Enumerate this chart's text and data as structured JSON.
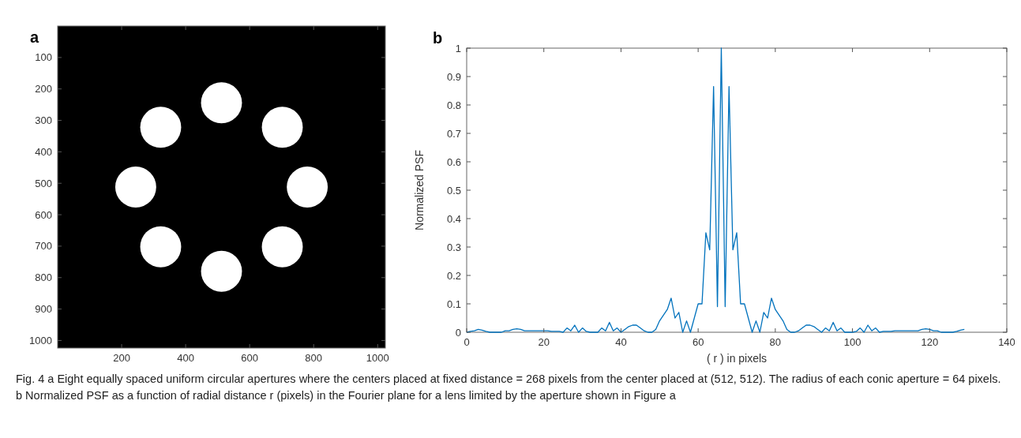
{
  "chart_data": [
    {
      "type": "bubble",
      "title": "a",
      "xlim": [
        0,
        1024
      ],
      "ylim": [
        1024,
        0
      ],
      "xticks": [
        200,
        400,
        600,
        800,
        1000
      ],
      "yticks": [
        100,
        200,
        300,
        400,
        500,
        600,
        700,
        800,
        900,
        1000
      ],
      "grid": false,
      "series": [
        {
          "color": "#ffffff",
          "x": [
            512,
            702,
            780,
            702,
            512,
            322,
            244,
            322
          ],
          "values": [
            244,
            322,
            512,
            702,
            780,
            702,
            512,
            322
          ],
          "sizes": [
            1,
            1,
            1,
            1,
            1,
            1,
            1,
            1
          ]
        }
      ]
    },
    {
      "type": "line",
      "title": "b",
      "xlabel": "( r ) in pixels",
      "ylabel": "Normalized PSF",
      "xlim": [
        0,
        140
      ],
      "ylim": [
        0,
        1
      ],
      "xticks": [
        0,
        20,
        40,
        60,
        80,
        100,
        120,
        140
      ],
      "yticks": [
        0,
        0.1,
        0.2,
        0.3,
        0.4,
        0.5,
        0.6,
        0.7,
        0.8,
        0.9,
        1
      ],
      "grid": false,
      "annotations": [
        "Fig. 4 a Eight equally spaced uniform circular apertures where the centers placed at fixed distance = 268 pixels from the center placed at (512, 512). The radius of each conic aperture = 64 pixels. b Normalized PSF as a function of radial distance r (pixels) in the Fourier plane for a lens limited by the aperture shown in Figure a"
      ],
      "series": [
        {
          "color": "#0072bd",
          "x": [
            0,
            1,
            2,
            3,
            4,
            5,
            6,
            7,
            8,
            9,
            10,
            11,
            12,
            13,
            14,
            15,
            16,
            17,
            18,
            19,
            20,
            21,
            22,
            23,
            24,
            25,
            26,
            27,
            28,
            29,
            30,
            31,
            32,
            33,
            34,
            35,
            36,
            37,
            38,
            39,
            40,
            41,
            42,
            43,
            44,
            45,
            46,
            47,
            48,
            49,
            50,
            51,
            52,
            53,
            54,
            55,
            56,
            57,
            58,
            59,
            60,
            61,
            62,
            63,
            64,
            65,
            66,
            67,
            68,
            69,
            70,
            71,
            72,
            73,
            74,
            75,
            76,
            77,
            78,
            79,
            80,
            81,
            82,
            83,
            84,
            85,
            86,
            87,
            88,
            89,
            90,
            91,
            92,
            93,
            94,
            95,
            96,
            97,
            98,
            99,
            100,
            101,
            102,
            103,
            104,
            105,
            106,
            107,
            108,
            109,
            110,
            111,
            112,
            113,
            114,
            115,
            116,
            117,
            118,
            119,
            120,
            121,
            122,
            123,
            124,
            125,
            126,
            127,
            128,
            129
          ],
          "values": [
            0,
            0.003,
            0.005,
            0.01,
            0.007,
            0.003,
            0,
            0,
            0,
            0,
            0.005,
            0.005,
            0.01,
            0.012,
            0.01,
            0.005,
            0.005,
            0.005,
            0.005,
            0.005,
            0.005,
            0.005,
            0.003,
            0.003,
            0.003,
            0,
            0.015,
            0.005,
            0.025,
            0,
            0.015,
            0.003,
            0,
            0,
            0,
            0.015,
            0.005,
            0.035,
            0.005,
            0.015,
            0,
            0.01,
            0.02,
            0.025,
            0.025,
            0.015,
            0.005,
            0,
            0,
            0.01,
            0.04,
            0.06,
            0.08,
            0.12,
            0.05,
            0.07,
            0,
            0.04,
            0,
            0.05,
            0.1,
            0.1,
            0.35,
            0.29,
            0.865,
            0.09,
            1,
            0.09,
            0.865,
            0.29,
            0.35,
            0.1,
            0.1,
            0.05,
            0,
            0.04,
            0,
            0.07,
            0.05,
            0.12,
            0.08,
            0.06,
            0.04,
            0.01,
            0,
            0,
            0.005,
            0.015,
            0.025,
            0.025,
            0.02,
            0.01,
            0,
            0.015,
            0.005,
            0.035,
            0.005,
            0.015,
            0,
            0,
            0,
            0.003,
            0.015,
            0,
            0.025,
            0.005,
            0.015,
            0,
            0.003,
            0.003,
            0.003,
            0.005,
            0.005,
            0.005,
            0.005,
            0.005,
            0.005,
            0.005,
            0.01,
            0.012,
            0.01,
            0.005,
            0.005,
            0,
            0,
            0,
            0,
            0.003,
            0.007,
            0.01
          ]
        }
      ]
    }
  ]
}
